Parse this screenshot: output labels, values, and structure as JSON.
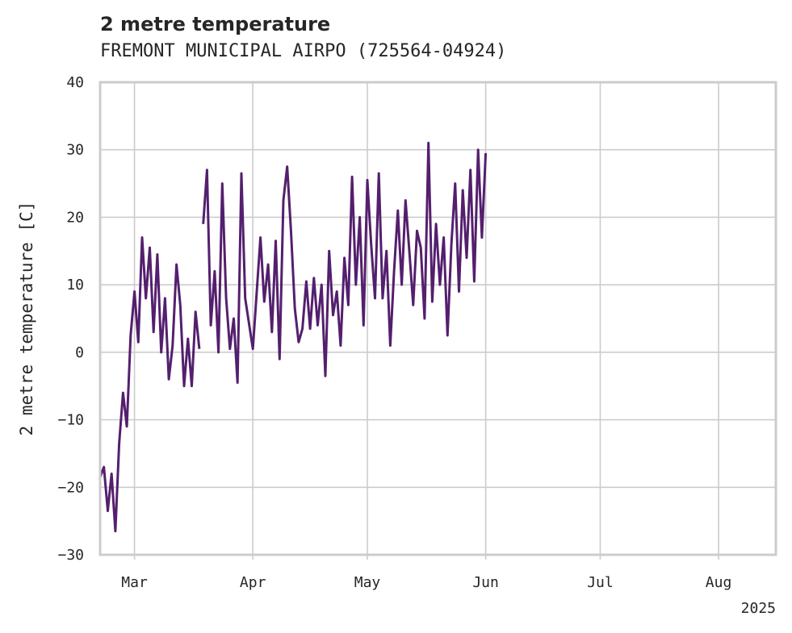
{
  "chart_data": {
    "type": "line",
    "title": "2 metre temperature",
    "subtitle": "FREMONT MUNICIPAL AIRPO (725564-04924)",
    "ylabel": "2 metre temperature [C]",
    "xlabel": "",
    "ylim": [
      -30,
      40
    ],
    "yticks": [
      -30,
      -20,
      -10,
      0,
      10,
      20,
      30,
      40
    ],
    "xlim": [
      "2025-02-20",
      "2025-08-16"
    ],
    "xticks": [
      {
        "date": "2025-03-01",
        "label": "Mar"
      },
      {
        "date": "2025-04-01",
        "label": "Apr"
      },
      {
        "date": "2025-05-01",
        "label": "May"
      },
      {
        "date": "2025-06-01",
        "label": "Jun"
      },
      {
        "date": "2025-07-01",
        "label": "Jul"
      },
      {
        "date": "2025-08-01",
        "label": "Aug"
      }
    ],
    "year_label": "2025",
    "grid": true,
    "series": [
      {
        "color": "#541f6e",
        "gap_after": [
          "2025-03-18"
        ],
        "points": [
          [
            "2025-02-20",
            -18.5
          ],
          [
            "2025-02-21",
            -17.0
          ],
          [
            "2025-02-22",
            -23.5
          ],
          [
            "2025-02-23",
            -18.0
          ],
          [
            "2025-02-24",
            -26.5
          ],
          [
            "2025-02-25",
            -13.5
          ],
          [
            "2025-02-26",
            -6.0
          ],
          [
            "2025-02-27",
            -11.0
          ],
          [
            "2025-02-28",
            2.5
          ],
          [
            "2025-03-01",
            9.0
          ],
          [
            "2025-03-02",
            1.5
          ],
          [
            "2025-03-03",
            17.0
          ],
          [
            "2025-03-04",
            8.0
          ],
          [
            "2025-03-05",
            15.5
          ],
          [
            "2025-03-06",
            3.0
          ],
          [
            "2025-03-07",
            14.5
          ],
          [
            "2025-03-08",
            0.0
          ],
          [
            "2025-03-09",
            8.0
          ],
          [
            "2025-03-10",
            -4.0
          ],
          [
            "2025-03-11",
            1.0
          ],
          [
            "2025-03-12",
            13.0
          ],
          [
            "2025-03-13",
            7.0
          ],
          [
            "2025-03-14",
            -5.0
          ],
          [
            "2025-03-15",
            2.0
          ],
          [
            "2025-03-16",
            -5.0
          ],
          [
            "2025-03-17",
            6.0
          ],
          [
            "2025-03-18",
            0.5
          ],
          [
            "2025-03-19",
            19.0
          ],
          [
            "2025-03-20",
            27.0
          ],
          [
            "2025-03-21",
            4.0
          ],
          [
            "2025-03-22",
            12.0
          ],
          [
            "2025-03-23",
            0.0
          ],
          [
            "2025-03-24",
            25.0
          ],
          [
            "2025-03-25",
            8.0
          ],
          [
            "2025-03-26",
            0.5
          ],
          [
            "2025-03-27",
            5.0
          ],
          [
            "2025-03-28",
            -4.5
          ],
          [
            "2025-03-29",
            26.5
          ],
          [
            "2025-03-30",
            8.0
          ],
          [
            "2025-04-01",
            0.5
          ],
          [
            "2025-04-03",
            17.0
          ],
          [
            "2025-04-04",
            7.5
          ],
          [
            "2025-04-05",
            13.0
          ],
          [
            "2025-04-06",
            3.0
          ],
          [
            "2025-04-07",
            16.5
          ],
          [
            "2025-04-08",
            -1.0
          ],
          [
            "2025-04-09",
            22.5
          ],
          [
            "2025-04-10",
            27.5
          ],
          [
            "2025-04-11",
            18.0
          ],
          [
            "2025-04-12",
            6.5
          ],
          [
            "2025-04-13",
            1.5
          ],
          [
            "2025-04-14",
            3.5
          ],
          [
            "2025-04-15",
            10.5
          ],
          [
            "2025-04-16",
            3.5
          ],
          [
            "2025-04-17",
            11.0
          ],
          [
            "2025-04-18",
            4.0
          ],
          [
            "2025-04-19",
            10.0
          ],
          [
            "2025-04-20",
            -3.5
          ],
          [
            "2025-04-21",
            15.0
          ],
          [
            "2025-04-22",
            5.5
          ],
          [
            "2025-04-23",
            9.0
          ],
          [
            "2025-04-24",
            1.0
          ],
          [
            "2025-04-25",
            14.0
          ],
          [
            "2025-04-26",
            7.0
          ],
          [
            "2025-04-27",
            26.0
          ],
          [
            "2025-04-28",
            10.0
          ],
          [
            "2025-04-29",
            20.0
          ],
          [
            "2025-04-30",
            4.0
          ],
          [
            "2025-05-01",
            25.5
          ],
          [
            "2025-05-02",
            16.0
          ],
          [
            "2025-05-03",
            8.0
          ],
          [
            "2025-05-04",
            26.5
          ],
          [
            "2025-05-05",
            8.0
          ],
          [
            "2025-05-06",
            15.0
          ],
          [
            "2025-05-07",
            1.0
          ],
          [
            "2025-05-08",
            12.0
          ],
          [
            "2025-05-09",
            21.0
          ],
          [
            "2025-05-10",
            10.0
          ],
          [
            "2025-05-11",
            22.5
          ],
          [
            "2025-05-12",
            15.0
          ],
          [
            "2025-05-13",
            7.0
          ],
          [
            "2025-05-14",
            18.0
          ],
          [
            "2025-05-15",
            15.5
          ],
          [
            "2025-05-16",
            5.0
          ],
          [
            "2025-05-17",
            31.0
          ],
          [
            "2025-05-18",
            7.5
          ],
          [
            "2025-05-19",
            19.0
          ],
          [
            "2025-05-20",
            10.0
          ],
          [
            "2025-05-21",
            17.0
          ],
          [
            "2025-05-22",
            2.5
          ],
          [
            "2025-05-23",
            16.0
          ],
          [
            "2025-05-24",
            25.0
          ],
          [
            "2025-05-25",
            9.0
          ],
          [
            "2025-05-26",
            24.0
          ],
          [
            "2025-05-27",
            14.0
          ],
          [
            "2025-05-28",
            27.0
          ],
          [
            "2025-05-29",
            10.5
          ],
          [
            "2025-05-30",
            30.0
          ],
          [
            "2025-05-31",
            17.0
          ],
          [
            "2025-06-01",
            29.5
          ]
        ]
      }
    ]
  }
}
